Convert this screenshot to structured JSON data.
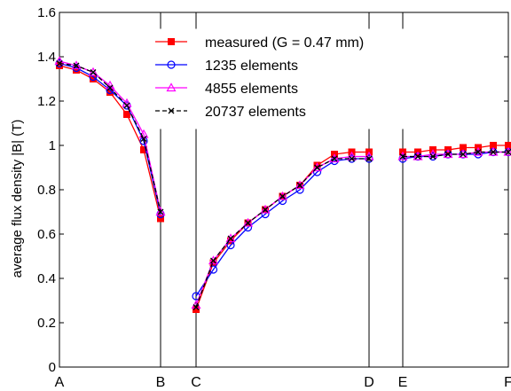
{
  "chart_data": {
    "type": "line",
    "title": "",
    "xlabel": "",
    "ylabel": "average flux density |B| (T)",
    "ylim": [
      0,
      1.6
    ],
    "yticks": [
      "0",
      "0.2",
      "0.4",
      "0.6",
      "0.8",
      "1",
      "1.2",
      "1.4",
      "1.6"
    ],
    "grid": false,
    "legend_position": "top-center",
    "segment_labels": [
      "A",
      "B",
      "C",
      "D",
      "E",
      "F"
    ],
    "segments": [
      {
        "start": "A",
        "end": "B",
        "points": 8
      },
      {
        "start": "C",
        "end": "D",
        "points": 12
      },
      {
        "start": "E",
        "end": "F",
        "points": 9
      }
    ],
    "series": [
      {
        "name": "measured (G = 0.47 mm)",
        "color": "#ff0000",
        "marker": "square",
        "values": [
          [
            1.36,
            1.34,
            1.3,
            1.24,
            1.14,
            0.98,
            0.67
          ],
          [
            0.26,
            0.47,
            0.57,
            0.65,
            0.71,
            0.77,
            0.82,
            0.91,
            0.96,
            0.97,
            0.97
          ],
          [
            0.97,
            0.97,
            0.98,
            0.98,
            0.99,
            0.99,
            1.0,
            1.0
          ]
        ]
      },
      {
        "name": "1235 elements",
        "color": "#0000ff",
        "marker": "circle",
        "values": [
          [
            1.37,
            1.35,
            1.31,
            1.25,
            1.18,
            1.02,
            0.69
          ],
          [
            0.32,
            0.44,
            0.55,
            0.63,
            0.69,
            0.75,
            0.8,
            0.88,
            0.93,
            0.94,
            0.94
          ],
          [
            0.94,
            0.95,
            0.95,
            0.96,
            0.96,
            0.96,
            0.97,
            0.97
          ]
        ]
      },
      {
        "name": "4855 elements",
        "color": "#ff00ff",
        "marker": "triangle",
        "values": [
          [
            1.38,
            1.36,
            1.33,
            1.27,
            1.19,
            1.05,
            0.7
          ],
          [
            0.28,
            0.48,
            0.58,
            0.65,
            0.71,
            0.77,
            0.82,
            0.9,
            0.94,
            0.95,
            0.95
          ],
          [
            0.95,
            0.95,
            0.96,
            0.96,
            0.96,
            0.97,
            0.97,
            0.97
          ]
        ]
      },
      {
        "name": "20737 elements",
        "color": "#000000",
        "marker": "x",
        "dashed": true,
        "values": [
          [
            1.37,
            1.36,
            1.33,
            1.26,
            1.18,
            1.03,
            0.7
          ],
          [
            0.27,
            0.48,
            0.58,
            0.65,
            0.71,
            0.77,
            0.82,
            0.9,
            0.94,
            0.94,
            0.94
          ],
          [
            0.95,
            0.95,
            0.95,
            0.96,
            0.96,
            0.97,
            0.97,
            0.97
          ]
        ]
      }
    ]
  }
}
